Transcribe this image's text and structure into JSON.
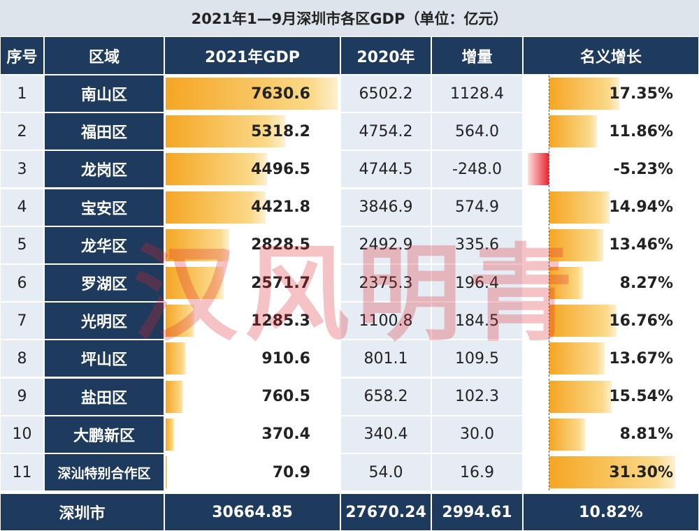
{
  "title": "2021年1—9月深圳市各区GDP（单位：亿元）",
  "watermark": "汉风明青",
  "table": {
    "header": [
      "序号",
      "区域",
      "2021年GDP",
      "2020年",
      "增量",
      "名义增长"
    ],
    "rows": [
      [
        "1",
        "南山区",
        "7630.6",
        "6502.2",
        "1128.4",
        "17.35%"
      ],
      [
        "2",
        "福田区",
        "5318.2",
        "4754.2",
        "564.0",
        "11.86%"
      ],
      [
        "3",
        "龙岗区",
        "4496.5",
        "4744.5",
        "-248.0",
        "-5.23%"
      ],
      [
        "4",
        "宝安区",
        "4421.8",
        "3846.9",
        "574.9",
        "14.94%"
      ],
      [
        "5",
        "龙华区",
        "2828.5",
        "2492.9",
        "335.6",
        "13.46%"
      ],
      [
        "6",
        "罗湖区",
        "2571.7",
        "2375.3",
        "196.4",
        "8.27%"
      ],
      [
        "7",
        "光明区",
        "1285.3",
        "1100.8",
        "184.5",
        "16.76%"
      ],
      [
        "8",
        "坪山区",
        "910.6",
        "801.1",
        "109.5",
        "13.67%"
      ],
      [
        "9",
        "盐田区",
        "760.5",
        "658.2",
        "102.3",
        "15.54%"
      ],
      [
        "10",
        "大鹏新区",
        "370.4",
        "340.4",
        "30.0",
        "8.81%"
      ],
      [
        "11",
        "深汕特别合作区",
        "70.9",
        "54.0",
        "16.9",
        "31.30%"
      ]
    ],
    "footer": [
      "深圳市",
      "30664.85",
      "27670.24",
      "2994.61",
      "10.82%"
    ]
  }
}
